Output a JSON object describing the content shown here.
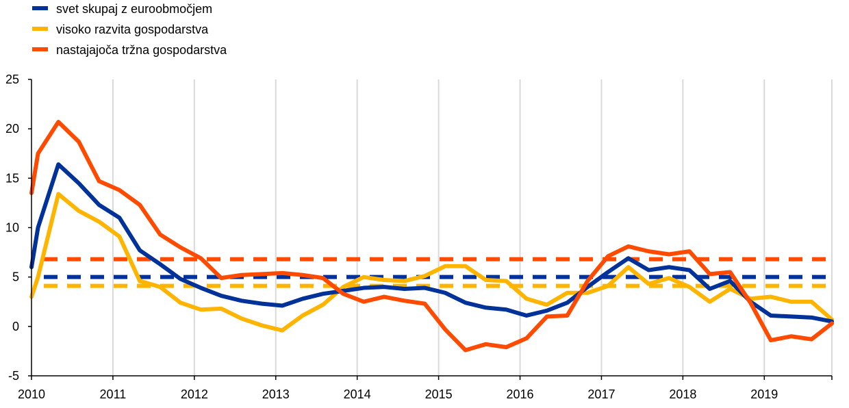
{
  "chart_data": {
    "type": "line",
    "title": "",
    "xlabel": "",
    "ylabel": "",
    "ylim": [
      -5,
      25
    ],
    "xlim": [
      2010,
      2019.83
    ],
    "y_ticks": [
      25,
      20,
      15,
      10,
      5,
      0,
      -5
    ],
    "y_tick_labels": [
      "25",
      "20",
      "15",
      "10",
      "5",
      "0",
      "-5"
    ],
    "x_ticks": [
      2010,
      2011,
      2012,
      2013,
      2014,
      2015,
      2016,
      2017,
      2018,
      2019
    ],
    "x_tick_labels": [
      "2010",
      "2011",
      "2012",
      "2013",
      "2014",
      "2015",
      "2016",
      "2017",
      "2018",
      "2019"
    ],
    "grid": "vertical",
    "legend_position": "top-left",
    "x": [
      2010.0,
      2010.25,
      2010.5,
      2010.75,
      2011.0,
      2011.25,
      2011.5,
      2011.75,
      2012.0,
      2012.25,
      2012.5,
      2012.75,
      2013.0,
      2013.25,
      2013.5,
      2013.75,
      2014.0,
      2014.25,
      2014.5,
      2014.75,
      2015.0,
      2015.25,
      2015.5,
      2015.75,
      2016.0,
      2016.25,
      2016.5,
      2016.75,
      2017.0,
      2017.25,
      2017.5,
      2017.75,
      2018.0,
      2018.25,
      2018.5,
      2018.75,
      2019.0,
      2019.25,
      2019.5,
      2019.75
    ],
    "series": [
      {
        "name": "svet skupaj z euroobmočjem",
        "color": "#003299",
        "start_value": 6.0,
        "values": [
          10.0,
          16.4,
          14.5,
          12.3,
          11.0,
          7.7,
          6.3,
          4.8,
          3.9,
          3.1,
          2.6,
          2.3,
          2.1,
          2.8,
          3.3,
          3.6,
          3.9,
          4.0,
          3.8,
          3.9,
          3.4,
          2.4,
          1.9,
          1.7,
          1.1,
          1.6,
          2.4,
          4.0,
          5.5,
          6.9,
          5.7,
          6.0,
          5.7,
          3.8,
          4.6,
          2.5,
          1.1,
          1.0,
          0.9,
          0.5
        ]
      },
      {
        "name": "visoko razvita gospodarstva",
        "color": "#FFB400",
        "start_value": 3.0,
        "values": [
          5.0,
          13.4,
          11.7,
          10.6,
          9.1,
          4.6,
          4.0,
          2.4,
          1.7,
          1.8,
          0.8,
          0.1,
          -0.4,
          1.1,
          2.2,
          4.0,
          5.0,
          4.7,
          4.6,
          5.1,
          6.1,
          6.1,
          4.7,
          4.6,
          2.8,
          2.2,
          3.4,
          3.4,
          4.1,
          6.0,
          4.3,
          4.9,
          4.0,
          2.5,
          3.8,
          2.8,
          3.0,
          2.5,
          2.5,
          0.7
        ]
      },
      {
        "name": "nastajajoča tržna gospodarstva",
        "color": "#FF4B00",
        "start_value": 13.5,
        "values": [
          17.5,
          20.7,
          18.7,
          14.7,
          13.8,
          12.3,
          9.3,
          8.0,
          6.9,
          4.9,
          5.2,
          5.3,
          5.4,
          5.2,
          4.9,
          3.3,
          2.5,
          3.0,
          2.6,
          2.3,
          -0.3,
          -2.4,
          -1.8,
          -2.1,
          -1.2,
          1.0,
          1.1,
          4.6,
          7.1,
          8.1,
          7.6,
          7.3,
          7.6,
          5.3,
          5.5,
          2.4,
          -1.4,
          -1.0,
          -1.3,
          0.3
        ]
      }
    ],
    "reference_lines": [
      {
        "series": "svet skupaj z euroobmočjem",
        "value": 5.0,
        "color": "#003299",
        "style": "dashed"
      },
      {
        "series": "visoko razvita gospodarstva",
        "value": 4.1,
        "color": "#FFB400",
        "style": "dashed"
      },
      {
        "series": "nastajajoča tržna gospodarstva",
        "value": 6.8,
        "color": "#FF4B00",
        "style": "dashed"
      }
    ]
  }
}
